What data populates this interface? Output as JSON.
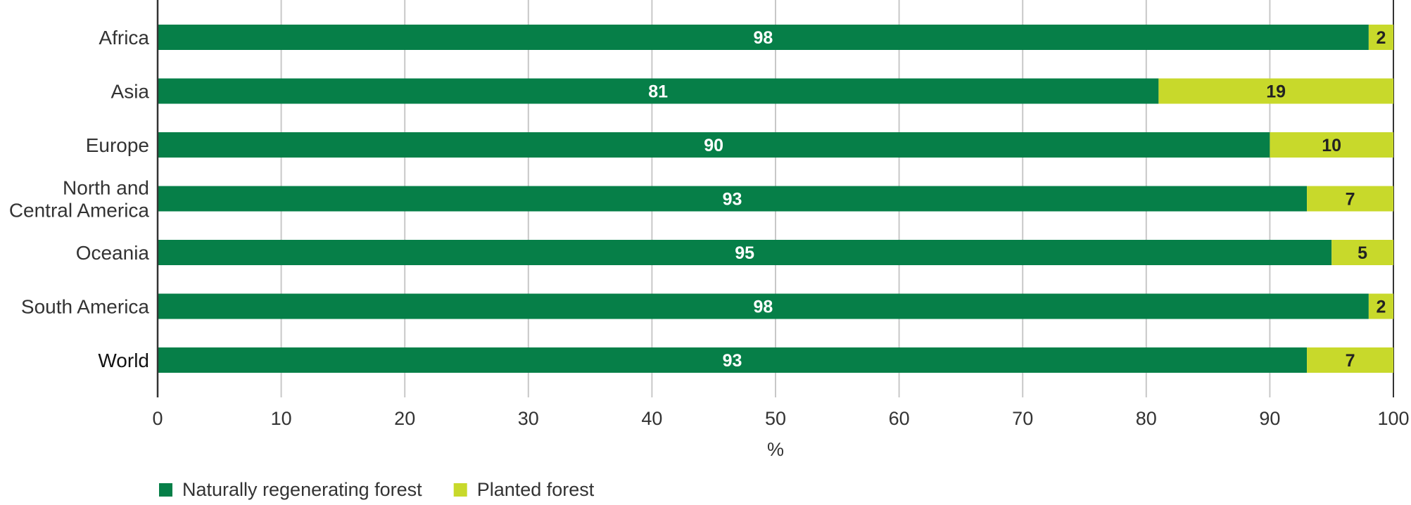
{
  "chart_data": {
    "type": "bar",
    "orientation": "horizontal",
    "stacked": true,
    "categories": [
      "Africa",
      "Asia",
      "Europe",
      "North and Central America",
      "Oceania",
      "South America",
      "World"
    ],
    "category_lines": [
      [
        "Africa"
      ],
      [
        "Asia"
      ],
      [
        "Europe"
      ],
      [
        "North and",
        "Central America"
      ],
      [
        "Oceania"
      ],
      [
        "South America"
      ],
      [
        "World"
      ]
    ],
    "series": [
      {
        "name": "Naturally regenerating forest",
        "color": "#067f48",
        "label_color": "#ffffff",
        "values": [
          98,
          81,
          90,
          93,
          95,
          98,
          93
        ]
      },
      {
        "name": "Planted forest",
        "color": "#c8d92b",
        "label_color": "#222222",
        "values": [
          2,
          19,
          10,
          7,
          5,
          2,
          7
        ]
      }
    ],
    "xlabel": "%",
    "xlim": [
      0,
      100
    ],
    "xticks": [
      "0",
      "10",
      "20",
      "30",
      "40",
      "50",
      "60",
      "70",
      "80",
      "90",
      "100"
    ],
    "grid": true,
    "legend_position": "bottom-left"
  }
}
